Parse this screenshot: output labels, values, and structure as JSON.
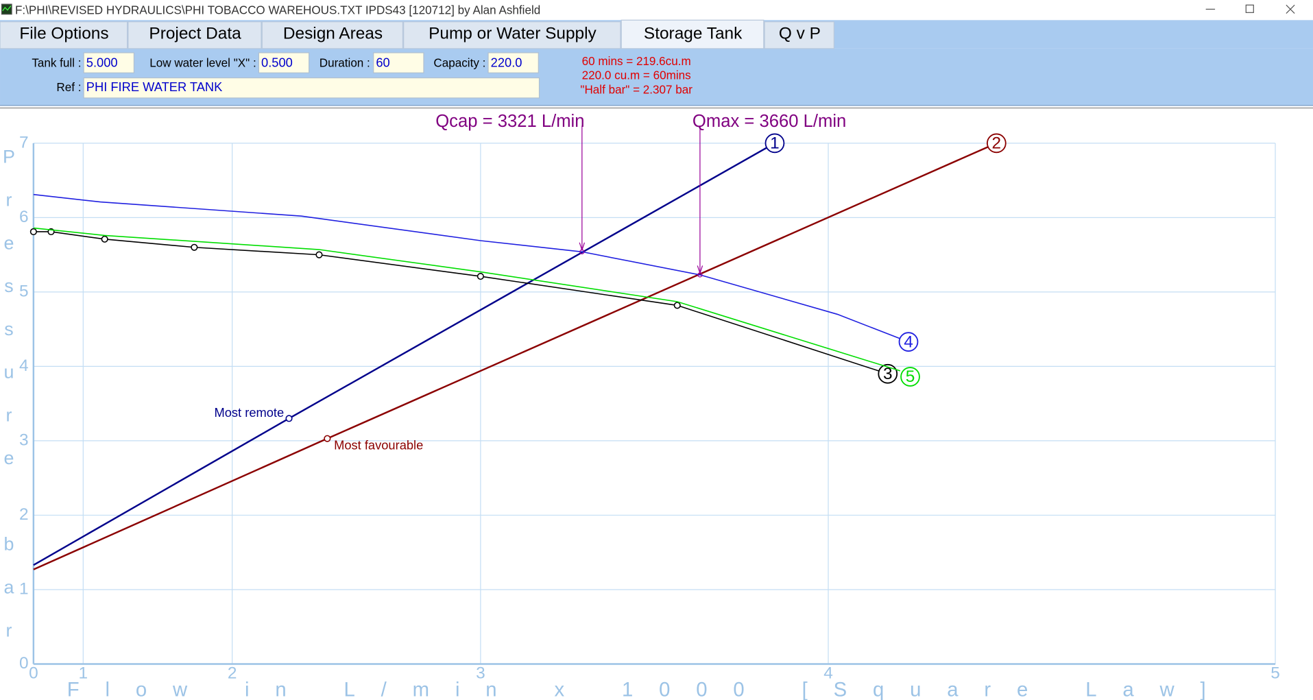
{
  "window": {
    "title": "F:\\PHI\\REVISED HYDRAULICS\\PHI TOBACCO WAREHOUS.TXT  IPDS43 [120712] by Alan Ashfield"
  },
  "tabs": [
    "File Options",
    "Project Data",
    "Design Areas",
    "Pump or Water Supply",
    "Storage Tank",
    "Q v P"
  ],
  "fields": [
    {
      "label": "Tank full :",
      "value": "5.000"
    },
    {
      "label": "Low water level \"X\" :",
      "value": "0.500"
    },
    {
      "label": "Duration :",
      "value": "60"
    },
    {
      "label": "Capacity :",
      "value": "220.0"
    }
  ],
  "ref": {
    "label": "Ref :",
    "value": "PHI FIRE WATER TANK"
  },
  "notes": [
    "60 mins = 219.6cu.m",
    "220.0 cu.m = 60mins",
    "\"Half bar\" = 2.307 bar"
  ],
  "chart_data": {
    "type": "line",
    "xlabel": "Flow in L/min x 1000 [Square Law]",
    "ylabel": "Pressure bar",
    "xscale": "square",
    "xlim": [
      0,
      5
    ],
    "xticks": [
      0,
      1,
      2,
      3,
      4,
      5
    ],
    "ylim": [
      0,
      7
    ],
    "yticks": [
      0,
      1,
      2,
      3,
      4,
      5,
      6,
      7
    ],
    "grid": true,
    "series": [
      {
        "name": "1",
        "color": "#00008b",
        "x": [
          0,
          2.268,
          3.863
        ],
        "values": [
          1.33,
          3.3,
          7
        ],
        "labels": [
          null,
          "Most remote",
          null
        ]
      },
      {
        "name": "2",
        "color": "#8b0000",
        "x": [
          0,
          2.432,
          4.403
        ],
        "values": [
          1.27,
          3.03,
          7
        ],
        "labels": [
          null,
          "Most favourable",
          null
        ]
      },
      {
        "name": "3",
        "color": "#000000",
        "markers": true,
        "x": [
          0,
          0.595,
          1.197,
          1.799,
          2.398,
          3,
          3.6,
          4.147
        ],
        "values": [
          5.81,
          5.81,
          5.71,
          5.6,
          5.5,
          5.21,
          4.82,
          3.9
        ]
      },
      {
        "name": "4",
        "color": "#1f1fe0",
        "x": [
          0,
          1.161,
          2.323,
          3,
          3.323,
          3.663,
          4.023,
          4.197
        ],
        "values": [
          6.31,
          6.21,
          6.02,
          5.69,
          5.54,
          5.23,
          4.7,
          4.33
        ]
      },
      {
        "name": "5",
        "color": "#00dd00",
        "x": [
          0,
          1.197,
          2.398,
          3,
          3.6,
          4.177
        ],
        "values": [
          5.86,
          5.76,
          5.57,
          5.27,
          4.87,
          3.94
        ]
      }
    ],
    "annotations": [
      {
        "text": "Qcap = 3321 L/min",
        "x": 3.323,
        "y": 5.54
      },
      {
        "text": "Qmax = 3660 L/min",
        "x": 3.663,
        "y": 5.23
      }
    ]
  }
}
